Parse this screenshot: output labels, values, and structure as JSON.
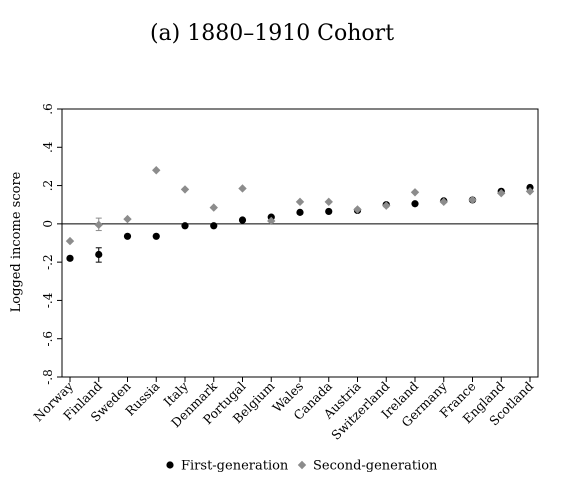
{
  "chart_data": {
    "type": "scatter",
    "title": "(a) 1880–1910 Cohort",
    "xlabel": "",
    "ylabel": "Logged income score",
    "ylim": [
      -0.8,
      0.6
    ],
    "yticks": [
      -0.8,
      -0.6,
      -0.4,
      -0.2,
      0,
      0.2,
      0.4,
      0.6
    ],
    "ytick_labels": [
      "-.8",
      "-.6",
      "-.4",
      "-.2",
      "0",
      ".2",
      ".4",
      ".6"
    ],
    "reference_line_y": 0,
    "grid": false,
    "legend_position": "bottom",
    "categories": [
      "Norway",
      "Finland",
      "Sweden",
      "Russia",
      "Italy",
      "Denmark",
      "Portugal",
      "Belgium",
      "Wales",
      "Canada",
      "Austria",
      "Switzerland",
      "Ireland",
      "Germany",
      "France",
      "England",
      "Scotland"
    ],
    "series": [
      {
        "name": "First-generation",
        "marker": "circle",
        "color": "#000000",
        "values": [
          -0.18,
          -0.16,
          -0.065,
          -0.065,
          -0.01,
          -0.01,
          0.02,
          0.035,
          0.06,
          0.065,
          0.07,
          0.1,
          0.105,
          0.12,
          0.125,
          0.17,
          0.19
        ],
        "error_low": [
          null,
          -0.2,
          null,
          null,
          null,
          null,
          null,
          null,
          null,
          null,
          null,
          null,
          null,
          null,
          null,
          null,
          null
        ],
        "error_high": [
          null,
          -0.125,
          null,
          null,
          null,
          null,
          null,
          null,
          null,
          null,
          null,
          null,
          null,
          null,
          null,
          null,
          null
        ]
      },
      {
        "name": "Second-generation",
        "marker": "diamond",
        "color": "#8c8c8c",
        "values": [
          -0.09,
          -0.005,
          0.025,
          0.28,
          0.18,
          0.085,
          0.185,
          0.015,
          0.115,
          0.115,
          0.075,
          0.095,
          0.165,
          0.115,
          0.125,
          0.16,
          0.17
        ],
        "error_low": [
          null,
          -0.035,
          null,
          null,
          null,
          null,
          null,
          null,
          null,
          null,
          null,
          null,
          null,
          null,
          null,
          null,
          null
        ],
        "error_high": [
          null,
          0.03,
          null,
          null,
          null,
          null,
          null,
          null,
          null,
          null,
          null,
          null,
          null,
          null,
          null,
          null,
          null
        ]
      }
    ]
  }
}
